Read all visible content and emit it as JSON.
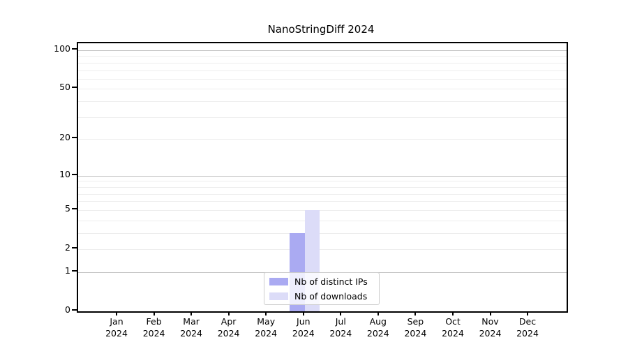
{
  "figure": {
    "background": "#ffffff"
  },
  "chart_data": {
    "type": "bar",
    "title": "NanoStringDiff 2024",
    "x_axis": {
      "months": [
        "Jan",
        "Feb",
        "Mar",
        "Apr",
        "May",
        "Jun",
        "Jul",
        "Aug",
        "Sep",
        "Oct",
        "Nov",
        "Dec"
      ],
      "year": "2024"
    },
    "categories": [
      "Jan 2024",
      "Feb 2024",
      "Mar 2024",
      "Apr 2024",
      "May 2024",
      "Jun 2024",
      "Jul 2024",
      "Aug 2024",
      "Sep 2024",
      "Oct 2024",
      "Nov 2024",
      "Dec 2024"
    ],
    "series": [
      {
        "name": "Nb of distinct IPs",
        "color": "#aaaaf2",
        "values": [
          0,
          0,
          0,
          0,
          0,
          3,
          0,
          0,
          0,
          0,
          0,
          0
        ]
      },
      {
        "name": "Nb of downloads",
        "color": "#dcdcf8",
        "values": [
          0,
          0,
          0,
          0,
          0,
          5,
          0,
          0,
          0,
          0,
          0,
          0
        ]
      }
    ],
    "y_axis": {
      "scale": "log1p",
      "ticks": [
        0,
        1,
        2,
        5,
        10,
        20,
        50,
        100
      ],
      "major_gridlines": [
        1,
        10,
        100
      ],
      "minor_gridlines": [
        2,
        3,
        4,
        5,
        6,
        7,
        8,
        9,
        20,
        30,
        40,
        50,
        60,
        70,
        80,
        90
      ],
      "range": [
        0,
        110
      ]
    },
    "legend": {
      "position": "bottom-center",
      "entries": [
        "Nb of distinct IPs",
        "Nb of downloads"
      ]
    },
    "grid": "horizontal"
  },
  "colors": {
    "spine": "#000000",
    "major_grid": "#c3c3c3",
    "minor_grid": "#ededed",
    "text": "#000000",
    "legend_border": "#cccccc",
    "bar_distinct_ips": "#aaaaf2",
    "bar_downloads": "#dcdcf8"
  }
}
